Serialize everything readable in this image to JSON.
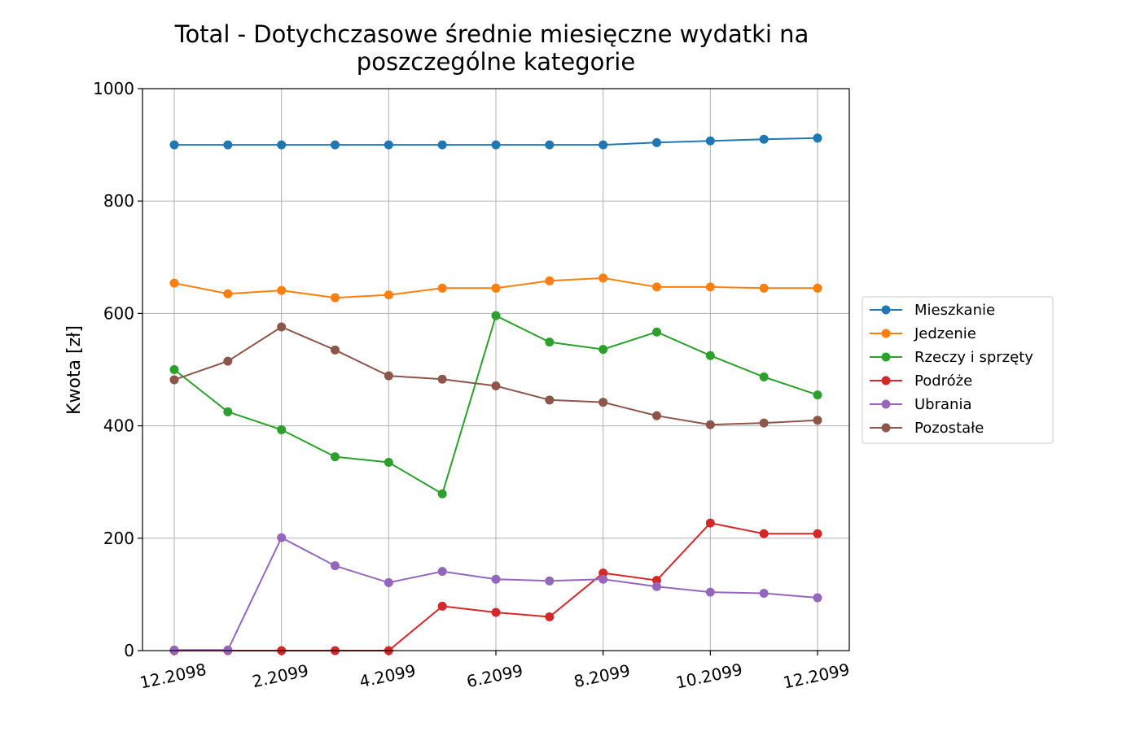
{
  "chart_data": {
    "type": "line",
    "title_lines": [
      "Total - Dotychczasowe średnie miesięczne wydatki na",
      "poszczególne kategorie"
    ],
    "xlabel": "",
    "ylabel": "Kwota [zł]",
    "ylim": [
      0,
      1000
    ],
    "yticks": [
      0,
      200,
      400,
      600,
      800,
      1000
    ],
    "x": [
      "12.2098",
      "1.2099",
      "2.2099",
      "3.2099",
      "4.2099",
      "5.2099",
      "6.2099",
      "7.2099",
      "8.2099",
      "9.2099",
      "10.2099",
      "11.2099",
      "12.2099"
    ],
    "xtick_labels": [
      "12.2098",
      "2.2099",
      "4.2099",
      "6.2099",
      "8.2099",
      "10.2099",
      "12.2099"
    ],
    "grid": true,
    "legend_position": "right",
    "series": [
      {
        "name": "Mieszkanie",
        "color": "#1f77b4",
        "values": [
          900,
          900,
          900,
          900,
          900,
          900,
          900,
          900,
          900,
          904,
          907,
          910,
          912
        ]
      },
      {
        "name": "Jedzenie",
        "color": "#ff7f0e",
        "values": [
          654,
          635,
          641,
          628,
          633,
          645,
          645,
          658,
          663,
          647,
          647,
          645,
          645
        ]
      },
      {
        "name": "Rzeczy i sprzęty",
        "color": "#2ca02c",
        "values": [
          500,
          425,
          393,
          345,
          335,
          279,
          596,
          549,
          536,
          567,
          525,
          487,
          455
        ]
      },
      {
        "name": "Podróże",
        "color": "#d62728",
        "values": [
          0,
          0,
          0,
          0,
          0,
          79,
          68,
          60,
          138,
          125,
          227,
          208,
          208
        ]
      },
      {
        "name": "Ubrania",
        "color": "#9467bd",
        "values": [
          1,
          1,
          201,
          151,
          121,
          141,
          127,
          124,
          127,
          114,
          104,
          102,
          94
        ]
      },
      {
        "name": "Pozostałe",
        "color": "#8c564b",
        "values": [
          482,
          515,
          576,
          535,
          489,
          483,
          471,
          446,
          442,
          418,
          402,
          405,
          410
        ]
      }
    ]
  }
}
